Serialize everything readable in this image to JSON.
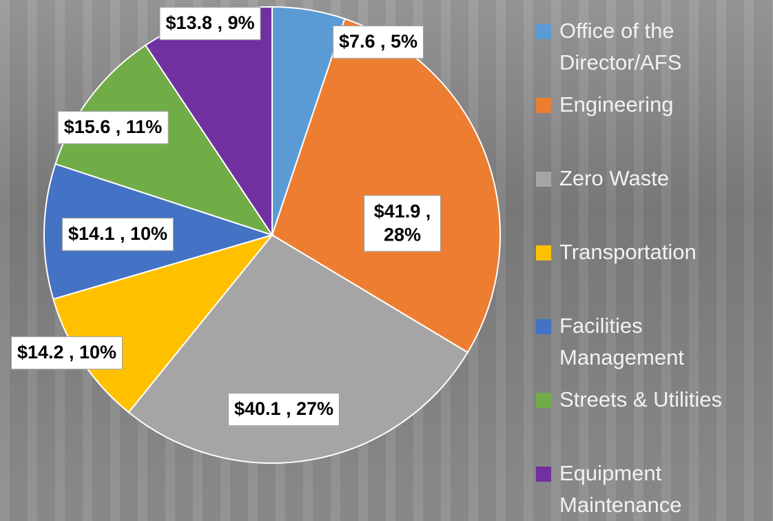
{
  "chart_data": {
    "type": "pie",
    "categories": [
      "Office of the Director/AFS",
      "Engineering",
      "Zero Waste",
      "Transportation",
      "Facilities Management",
      "Streets & Utilities",
      "Equipment Maintenance"
    ],
    "values": [
      7.6,
      41.9,
      40.1,
      14.2,
      14.1,
      15.6,
      13.8
    ],
    "value_labels": [
      "$7.6 , 5%",
      "$41.9 , 28%",
      "$40.1 , 27%",
      "$14.2 , 10%",
      "$14.1 , 10%",
      "$15.6 , 11%",
      "$13.8 , 9%"
    ],
    "colors": [
      "#5b9bd5",
      "#ed7d31",
      "#a5a5a5",
      "#ffc000",
      "#4472c4",
      "#70ad47",
      "#7030a0"
    ],
    "legend": "right"
  }
}
